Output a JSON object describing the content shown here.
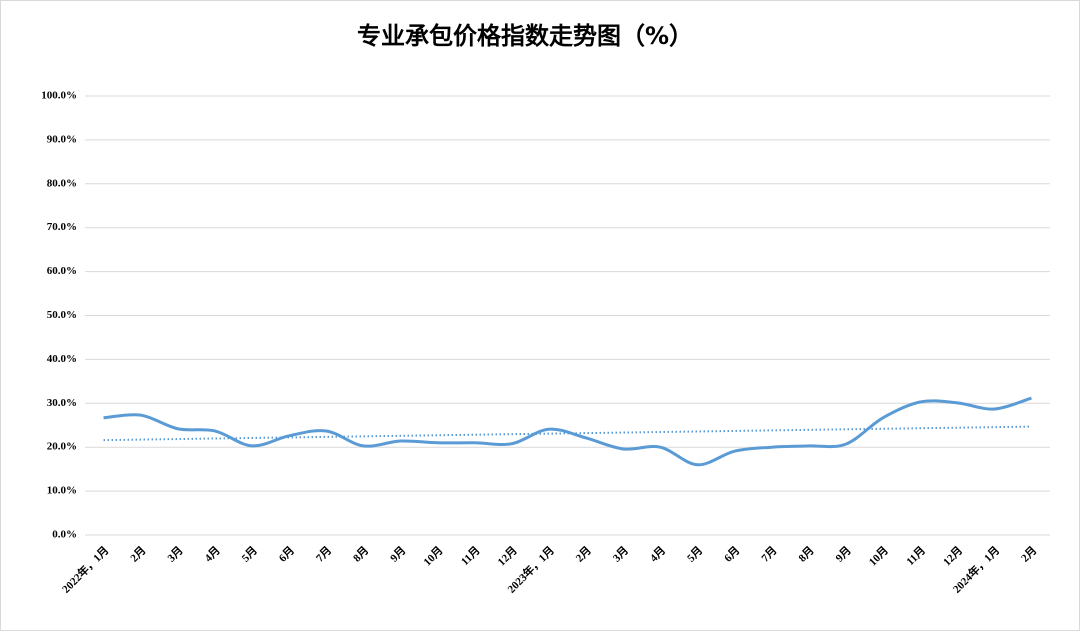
{
  "chart_data": {
    "type": "line",
    "title": "专业承包价格指数走势图（%）",
    "categories": [
      "2022年，1月",
      "2月",
      "3月",
      "4月",
      "5月",
      "6月",
      "7月",
      "8月",
      "9月",
      "10月",
      "11月",
      "12月",
      "2023年，1月",
      "2月",
      "3月",
      "4月",
      "5月",
      "6月",
      "7月",
      "8月",
      "9月",
      "10月",
      "11月",
      "12月",
      "2024年，1月",
      "2月"
    ],
    "series": [
      {
        "name": "专业承包价格指数",
        "color": "#5b9bd5",
        "values": [
          26.7,
          27.3,
          24.2,
          23.7,
          20.3,
          22.6,
          23.7,
          20.3,
          21.4,
          21.0,
          21.0,
          20.8,
          24.1,
          22.1,
          19.6,
          20.0,
          16.0,
          19.1,
          20.0,
          20.3,
          20.7,
          26.7,
          30.3,
          30.1,
          28.7,
          31.2
        ]
      }
    ],
    "ylim": [
      0,
      100
    ],
    "yticks": [
      {
        "value": 0,
        "label": "0.0%"
      },
      {
        "value": 10,
        "label": "10.0%"
      },
      {
        "value": 20,
        "label": "20.0%"
      },
      {
        "value": 30,
        "label": "30.0%"
      },
      {
        "value": 40,
        "label": "40.0%"
      },
      {
        "value": 50,
        "label": "50.0%"
      },
      {
        "value": 60,
        "label": "60.0%"
      },
      {
        "value": 70,
        "label": "70.0%"
      },
      {
        "value": 80,
        "label": "80.0%"
      },
      {
        "value": 90,
        "label": "90.0%"
      },
      {
        "value": 100,
        "label": "100.0%"
      }
    ],
    "grid": true,
    "smooth": true,
    "trendline": true
  }
}
